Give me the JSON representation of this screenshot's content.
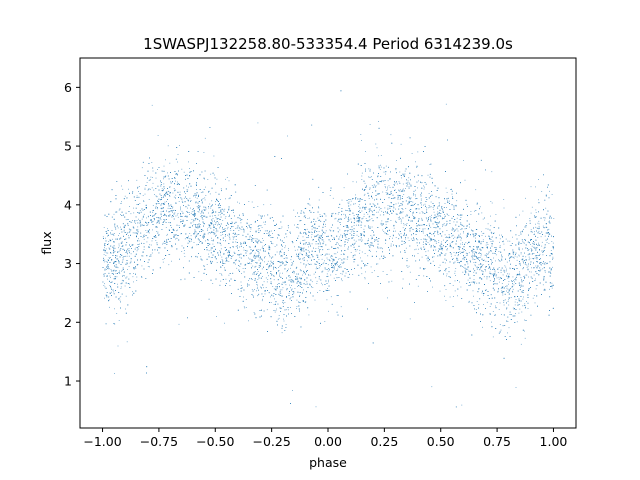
{
  "chart_data": {
    "type": "scatter",
    "title": "1SWASPJ132258.80-533354.4 Period 6314239.0s",
    "xlabel": "phase",
    "ylabel": "flux",
    "xlim": [
      -1.1,
      1.1
    ],
    "ylim": [
      0.2,
      6.5
    ],
    "x_ticks": [
      -1.0,
      -0.75,
      -0.5,
      -0.25,
      0.0,
      0.25,
      0.5,
      0.75,
      1.0
    ],
    "x_tick_labels": [
      "−1.00",
      "−0.75",
      "−0.50",
      "−0.25",
      "0.00",
      "0.25",
      "0.50",
      "0.75",
      "1.00"
    ],
    "y_ticks": [
      1,
      2,
      3,
      4,
      5,
      6
    ],
    "y_tick_labels": [
      "1",
      "2",
      "3",
      "4",
      "5",
      "6"
    ],
    "grid": false,
    "marker_color": "#1f77b4",
    "series": [
      {
        "x_range": [
          -1.0,
          1.0
        ],
        "trend": {
          "x": [
            -1.0,
            -0.95,
            -0.9,
            -0.85,
            -0.8,
            -0.75,
            -0.7,
            -0.65,
            -0.6,
            -0.55,
            -0.5,
            -0.45,
            -0.4,
            -0.35,
            -0.3,
            -0.25,
            -0.2,
            -0.15,
            -0.1,
            -0.05,
            0.0,
            0.05,
            0.1,
            0.15,
            0.2,
            0.25,
            0.3,
            0.35,
            0.4,
            0.45,
            0.5,
            0.55,
            0.6,
            0.65,
            0.7,
            0.75,
            0.8,
            0.85,
            0.9,
            0.95,
            1.0
          ],
          "y": [
            3.2,
            3.0,
            3.3,
            3.5,
            3.7,
            3.9,
            4.0,
            3.9,
            3.8,
            3.7,
            3.6,
            3.4,
            3.3,
            3.1,
            3.0,
            3.0,
            2.7,
            2.8,
            3.2,
            3.3,
            3.1,
            3.3,
            3.5,
            3.7,
            3.8,
            3.9,
            4.0,
            3.9,
            3.8,
            3.7,
            3.6,
            3.4,
            3.3,
            3.1,
            3.0,
            2.9,
            2.7,
            2.7,
            3.2,
            3.3,
            3.2
          ]
        },
        "scatter_sd": 0.45,
        "n_points": 9000
      }
    ]
  }
}
